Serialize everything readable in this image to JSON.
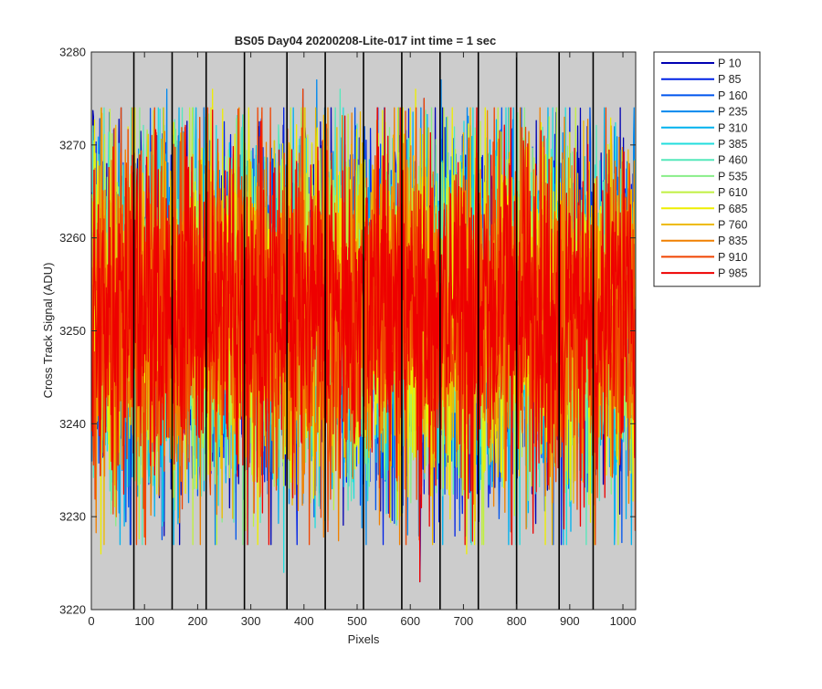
{
  "chart_data": {
    "type": "line",
    "title": "BS05 Day04 20200208-Lite-017 int time = 1 sec",
    "xlabel": "Pixels",
    "ylabel": "Cross Track Signal (ADU)",
    "xlim": [
      0,
      1024
    ],
    "ylim": [
      3220,
      3280
    ],
    "xticks": [
      "0",
      "100",
      "200",
      "300",
      "400",
      "500",
      "600",
      "700",
      "800",
      "900",
      "1000"
    ],
    "xtick_values": [
      0,
      100,
      200,
      300,
      400,
      500,
      600,
      700,
      800,
      900,
      1000
    ],
    "yticks": [
      "3220",
      "3230",
      "3240",
      "3250",
      "3260",
      "3270",
      "3280"
    ],
    "ytick_values": [
      3220,
      3230,
      3240,
      3250,
      3260,
      3270,
      3280
    ],
    "grid": false,
    "background": "#cccccc",
    "vertical_lines_x": [
      80,
      152,
      216,
      288,
      368,
      440,
      512,
      584,
      656,
      728,
      800,
      880,
      944
    ],
    "vertical_line_color": "#000000",
    "noise": {
      "mean": 3252,
      "typical_min": 3234,
      "typical_max": 3272,
      "observed_min": 3223,
      "observed_max": 3277,
      "num_pixels": 1024
    },
    "legend_position": "outside-top-right",
    "series": [
      {
        "name": "P 10",
        "color": "#0000b3"
      },
      {
        "name": "P 85",
        "color": "#0022e6"
      },
      {
        "name": "P 160",
        "color": "#0055ee"
      },
      {
        "name": "P 235",
        "color": "#0088ee"
      },
      {
        "name": "P 310",
        "color": "#00b2ee"
      },
      {
        "name": "P 385",
        "color": "#22dddd"
      },
      {
        "name": "P 460",
        "color": "#55e8bb"
      },
      {
        "name": "P 535",
        "color": "#88ee88"
      },
      {
        "name": "P 610",
        "color": "#c0f040"
      },
      {
        "name": "P 685",
        "color": "#eeee00"
      },
      {
        "name": "P 760",
        "color": "#eebb00"
      },
      {
        "name": "P 835",
        "color": "#f08000"
      },
      {
        "name": "P 910",
        "color": "#f04400"
      },
      {
        "name": "P 985",
        "color": "#ee0000"
      }
    ]
  }
}
